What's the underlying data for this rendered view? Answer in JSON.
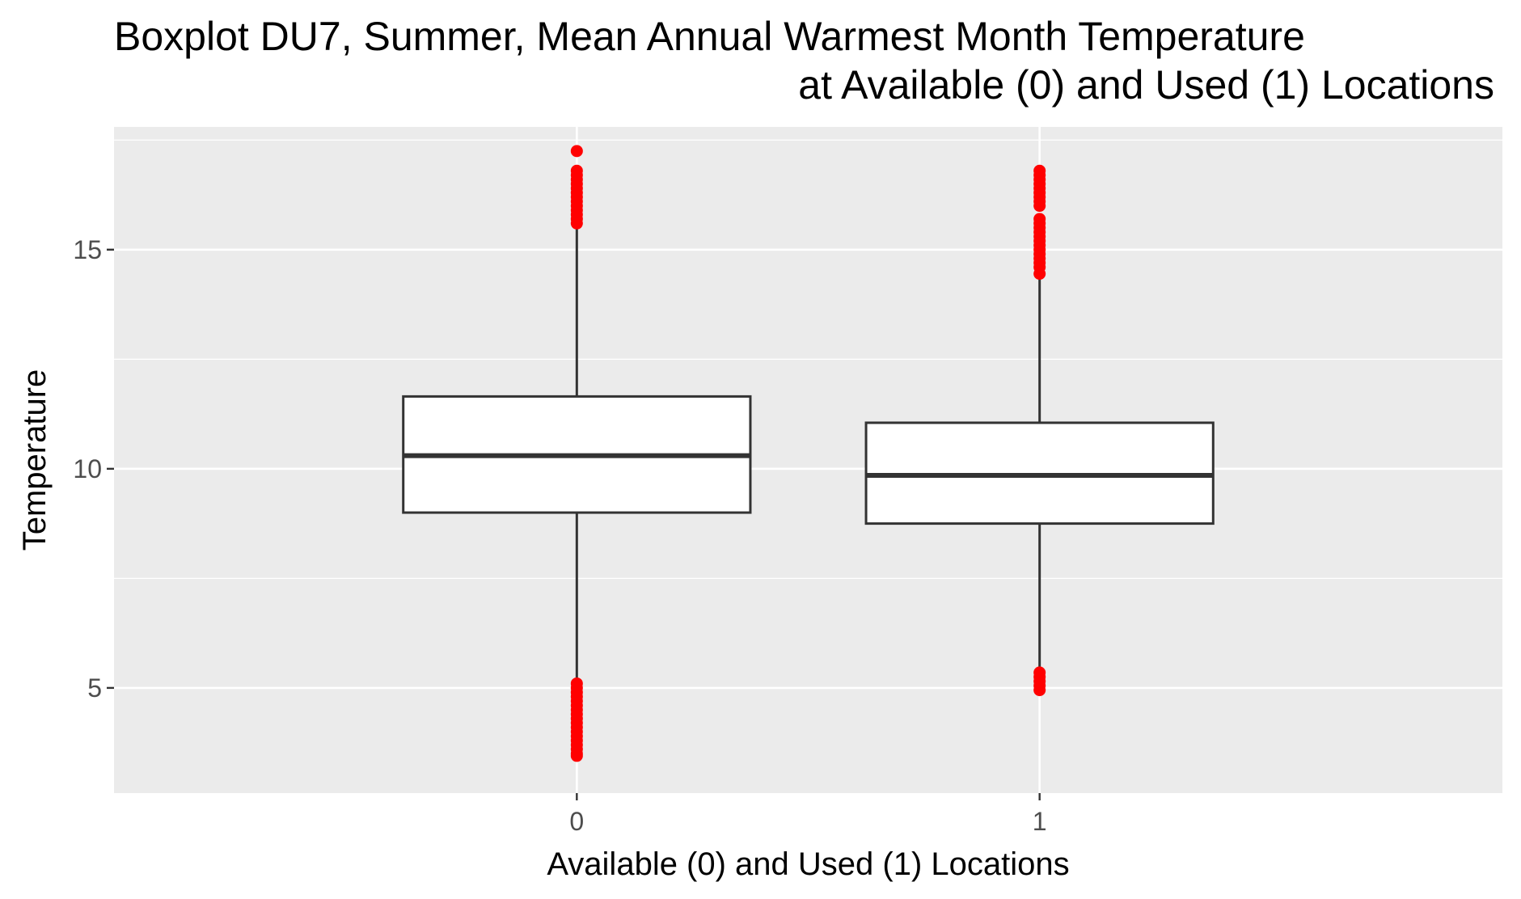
{
  "chart_data": {
    "type": "boxplot",
    "title": [
      "Boxplot DU7, Summer, Mean Annual Warmest Month Temperature",
      "at Available (0) and Used (1) Locations"
    ],
    "xlabel": "Available (0) and Used (1) Locations",
    "ylabel": "Temperature",
    "categories": [
      "0",
      "1"
    ],
    "ylim": [
      2.6,
      17.8
    ],
    "yticks": [
      5,
      10,
      15
    ],
    "grid": true,
    "outlier_color": "#ff0000",
    "panel_color": "#ebebeb",
    "boxes": [
      {
        "category": "0",
        "whisker_low": 5.15,
        "q1": 9.0,
        "median": 10.3,
        "q3": 11.65,
        "whisker_high": 15.55,
        "outliers_high": [
          15.6,
          15.7,
          15.8,
          15.9,
          16.0,
          16.1,
          16.2,
          16.3,
          16.4,
          16.5,
          16.6,
          16.7,
          16.8,
          17.25
        ],
        "outliers_low": [
          3.45,
          3.5,
          3.6,
          3.7,
          3.8,
          3.9,
          4.0,
          4.1,
          4.2,
          4.3,
          4.4,
          4.5,
          4.6,
          4.7,
          4.8,
          4.9,
          5.0,
          5.1
        ]
      },
      {
        "category": "1",
        "whisker_low": 5.4,
        "q1": 8.75,
        "median": 9.85,
        "q3": 11.05,
        "whisker_high": 14.4,
        "outliers_high": [
          14.45,
          14.6,
          14.7,
          14.8,
          14.9,
          15.0,
          15.1,
          15.2,
          15.3,
          15.4,
          15.5,
          15.6,
          15.7,
          16.0,
          16.1,
          16.2,
          16.3,
          16.4,
          16.5,
          16.6,
          16.7,
          16.8
        ],
        "outliers_low": [
          4.95,
          5.05,
          5.15,
          5.25,
          5.35
        ]
      }
    ]
  }
}
